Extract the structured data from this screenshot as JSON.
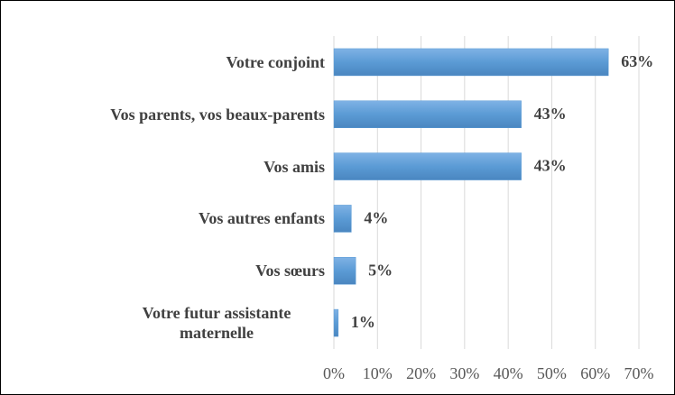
{
  "chart_data": {
    "type": "barh",
    "categories": [
      "Votre conjoint",
      "Vos parents, vos beaux-parents",
      "Vos amis",
      "Vos autres enfants",
      "Vos sœurs",
      "Votre futur assistante maternelle"
    ],
    "values": [
      63,
      43,
      43,
      4,
      5,
      1
    ],
    "value_labels": [
      "63%",
      "43%",
      "43%",
      "4%",
      "5%",
      "1%"
    ],
    "color": "#5b9bd5",
    "xlim": [
      0,
      70
    ],
    "xticks": [
      {
        "value": 0,
        "label": "0%"
      },
      {
        "value": 10,
        "label": "10%"
      },
      {
        "value": 20,
        "label": "20%"
      },
      {
        "value": 30,
        "label": "30%"
      },
      {
        "value": 40,
        "label": "40%"
      },
      {
        "value": 50,
        "label": "50%"
      },
      {
        "value": 60,
        "label": "60%"
      },
      {
        "value": 70,
        "label": "70%"
      }
    ],
    "grid": true
  }
}
